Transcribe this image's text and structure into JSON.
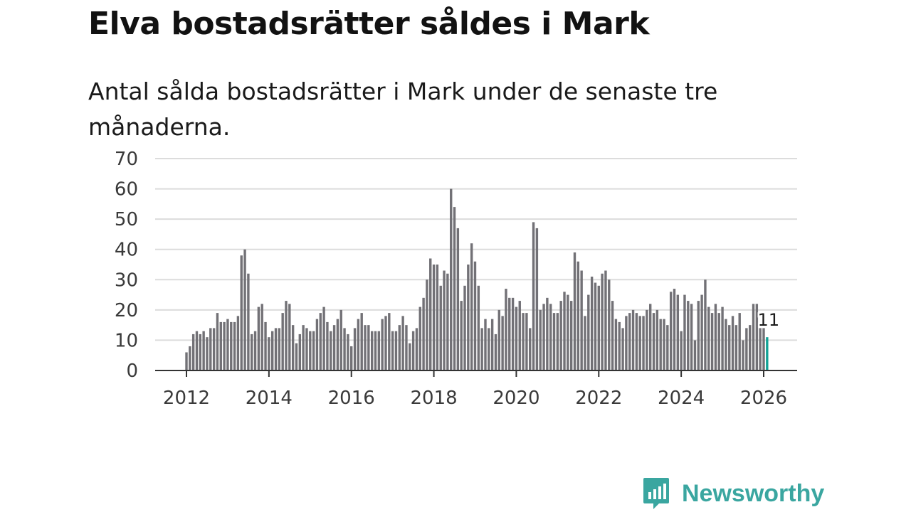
{
  "title": "Elva bostadsrätter såldes i Mark",
  "subtitle": "Antal sålda bostadsrätter i Mark under de senaste tre månaderna.",
  "brand": {
    "name": "Newsworthy",
    "color": "#3aa6a0"
  },
  "colors": {
    "bar": "#727176",
    "highlight": "#13a396"
  },
  "chart_data": {
    "type": "bar",
    "title": "Elva bostadsrätter såldes i Mark",
    "xlabel": "",
    "ylabel": "",
    "ylim": [
      0,
      70
    ],
    "yticks": [
      0,
      10,
      20,
      30,
      40,
      50,
      60,
      70
    ],
    "xticks": [
      "2012",
      "2014",
      "2016",
      "2018",
      "2020",
      "2022",
      "2024",
      "2026"
    ],
    "start": "2012-01",
    "end": "2026-02",
    "grid": true,
    "highlight_last": true,
    "last_label": "11",
    "series": [
      {
        "name": "Antal sålda bostadsrätter",
        "values": [
          6,
          8,
          12,
          13,
          12,
          13,
          11,
          14,
          14,
          19,
          16,
          16,
          17,
          16,
          16,
          18,
          38,
          40,
          32,
          12,
          13,
          21,
          22,
          16,
          11,
          13,
          14,
          14,
          19,
          23,
          22,
          15,
          9,
          12,
          15,
          14,
          13,
          13,
          17,
          19,
          21,
          16,
          13,
          15,
          17,
          20,
          14,
          12,
          8,
          14,
          17,
          19,
          15,
          15,
          13,
          13,
          13,
          17,
          18,
          19,
          13,
          13,
          15,
          18,
          15,
          9,
          13,
          14,
          21,
          24,
          30,
          37,
          35,
          35,
          28,
          33,
          32,
          60,
          54,
          47,
          23,
          28,
          35,
          42,
          36,
          28,
          14,
          17,
          14,
          17,
          12,
          20,
          18,
          27,
          24,
          24,
          21,
          23,
          19,
          19,
          14,
          49,
          47,
          20,
          22,
          24,
          22,
          19,
          19,
          23,
          26,
          25,
          23,
          39,
          36,
          33,
          18,
          25,
          31,
          29,
          28,
          32,
          33,
          30,
          23,
          17,
          16,
          14,
          18,
          19,
          20,
          19,
          18,
          18,
          20,
          22,
          19,
          20,
          17,
          17,
          15,
          26,
          27,
          25,
          13,
          25,
          23,
          22,
          10,
          23,
          25,
          30,
          21,
          19,
          22,
          19,
          21,
          17,
          15,
          18,
          15,
          19,
          10,
          14,
          15,
          22,
          22,
          14,
          14,
          11
        ]
      }
    ]
  }
}
